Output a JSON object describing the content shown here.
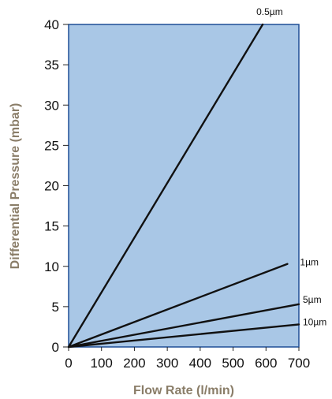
{
  "chart_data": {
    "type": "line",
    "title": "",
    "xlabel": "Flow Rate (l/min)",
    "ylabel": "Differential Pressure (mbar)",
    "xlim": [
      0,
      700
    ],
    "ylim": [
      0,
      40
    ],
    "x_ticks": [
      0,
      100,
      200,
      300,
      400,
      500,
      600,
      700
    ],
    "y_ticks": [
      0,
      5,
      10,
      15,
      20,
      25,
      30,
      35,
      40
    ],
    "grid": false,
    "legend": "none",
    "series": [
      {
        "name": "0.5µm",
        "x": [
          0,
          590
        ],
        "y": [
          0,
          40
        ]
      },
      {
        "name": "1µm",
        "x": [
          0,
          665
        ],
        "y": [
          0,
          10.3
        ]
      },
      {
        "name": "5µm",
        "x": [
          0,
          700
        ],
        "y": [
          0,
          5.3
        ]
      },
      {
        "name": "10µm",
        "x": [
          0,
          700
        ],
        "y": [
          0,
          2.8
        ]
      }
    ]
  },
  "colors": {
    "plot_background": "#a9c7e6",
    "frame": "#1f4e96",
    "series_line": "#111111",
    "axis_title": "#8a7d68",
    "tick_text": "#111111"
  }
}
